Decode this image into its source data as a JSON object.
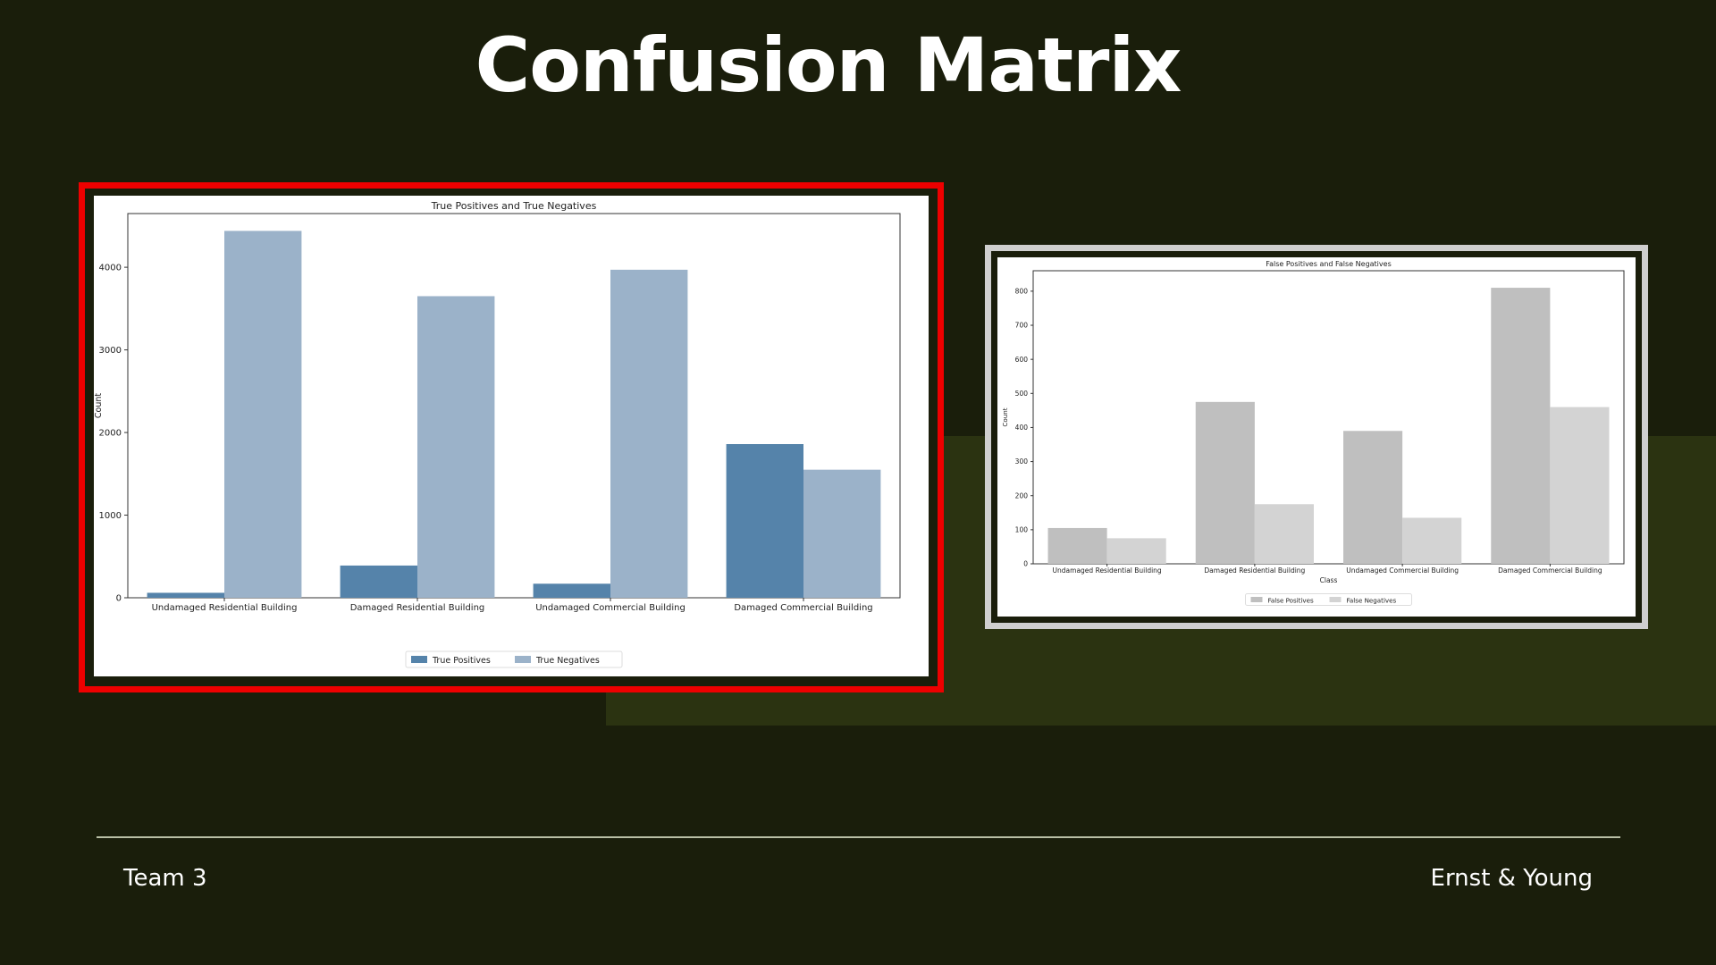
{
  "slide": {
    "title": "Confusion Matrix",
    "footer_left": "Team 3",
    "footer_right": "Ernst & Young"
  },
  "chart_data": [
    {
      "type": "bar",
      "title": "True Positives and True Negatives",
      "xlabel": "",
      "ylabel": "Count",
      "categories": [
        "Undamaged Residential Building",
        "Damaged Residential Building",
        "Undamaged Commercial Building",
        "Damaged Commercial Building"
      ],
      "series": [
        {
          "name": "True Positives",
          "values": [
            60,
            390,
            170,
            1860
          ],
          "color": "#5583aa"
        },
        {
          "name": "True Negatives",
          "values": [
            4440,
            3650,
            3970,
            1550
          ],
          "color": "#9bb2c9"
        }
      ],
      "ylim": [
        0,
        4650
      ],
      "yticks": [
        0,
        1000,
        2000,
        3000,
        4000
      ],
      "legend": "bottom-center",
      "grid": false
    },
    {
      "type": "bar",
      "title": "False Positives and False Negatives",
      "xlabel": "Class",
      "ylabel": "Count",
      "categories": [
        "Undamaged Residential Building",
        "Damaged Residential Building",
        "Undamaged Commercial Building",
        "Damaged Commercial Building"
      ],
      "series": [
        {
          "name": "False Positives",
          "values": [
            105,
            475,
            390,
            810
          ],
          "color": "#bfbfbf"
        },
        {
          "name": "False Negatives",
          "values": [
            75,
            175,
            135,
            460
          ],
          "color": "#d3d3d3"
        }
      ],
      "ylim": [
        0,
        860
      ],
      "yticks": [
        0,
        100,
        200,
        300,
        400,
        500,
        600,
        700,
        800
      ],
      "legend": "bottom-center",
      "grid": false
    }
  ]
}
